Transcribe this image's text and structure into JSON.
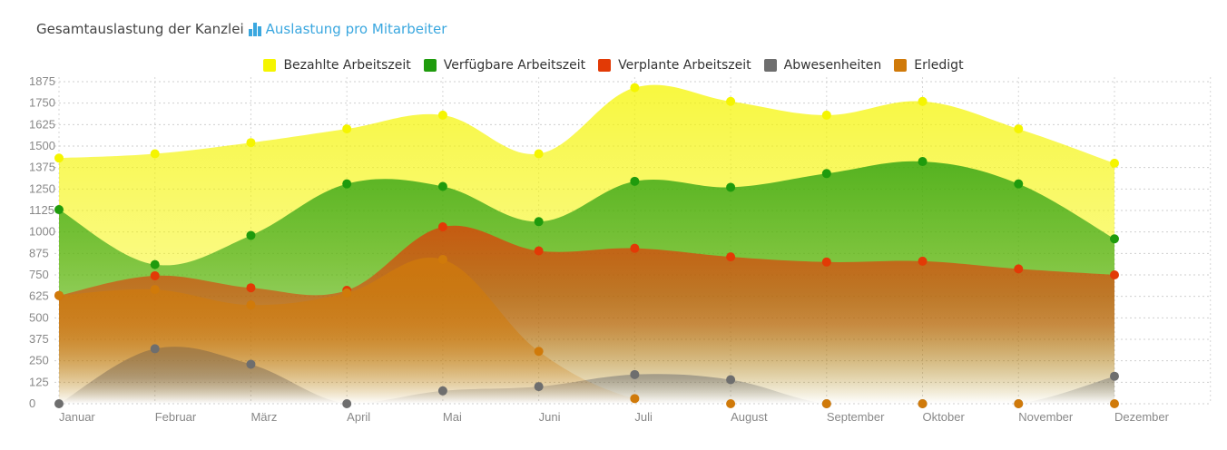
{
  "header": {
    "title": "Gesamtauslastung der Kanzlei",
    "link_label": "Auslastung pro Mitarbeiter",
    "link_icon": "bar-chart-icon",
    "link_color": "#3aa7df"
  },
  "chart_data": {
    "type": "area",
    "title": "",
    "xlabel": "",
    "ylabel": "",
    "categories": [
      "Januar",
      "Februar",
      "März",
      "April",
      "Mai",
      "Juni",
      "Juli",
      "August",
      "September",
      "Oktober",
      "November",
      "Dezember"
    ],
    "ylim": [
      0,
      1875
    ],
    "yticks": [
      0,
      125,
      250,
      375,
      500,
      625,
      750,
      875,
      1000,
      1125,
      1250,
      1375,
      1500,
      1625,
      1750,
      1875
    ],
    "grid": true,
    "legend_position": "top-center",
    "series": [
      {
        "name": "Bezahlte Arbeitszeit",
        "color": "#f5f500",
        "values": [
          1430,
          1455,
          1520,
          1600,
          1680,
          1455,
          1840,
          1760,
          1680,
          1760,
          1600,
          1400
        ]
      },
      {
        "name": "Verfügbare Arbeitszeit",
        "color": "#1f9b0d",
        "values": [
          1130,
          810,
          980,
          1280,
          1265,
          1060,
          1295,
          1260,
          1340,
          1410,
          1280,
          960
        ]
      },
      {
        "name": "Verplante Arbeitszeit",
        "color": "#e23a06",
        "values": [
          630,
          745,
          675,
          660,
          1030,
          890,
          905,
          855,
          825,
          830,
          785,
          750
        ]
      },
      {
        "name": "Abwesenheiten",
        "color": "#6e6e6e",
        "values": [
          0,
          320,
          230,
          0,
          75,
          100,
          170,
          140,
          0,
          0,
          0,
          160
        ]
      },
      {
        "name": "Erledigt",
        "color": "#d07a0a",
        "values": [
          630,
          665,
          575,
          645,
          840,
          305,
          30,
          0,
          0,
          0,
          0,
          0
        ]
      }
    ]
  }
}
